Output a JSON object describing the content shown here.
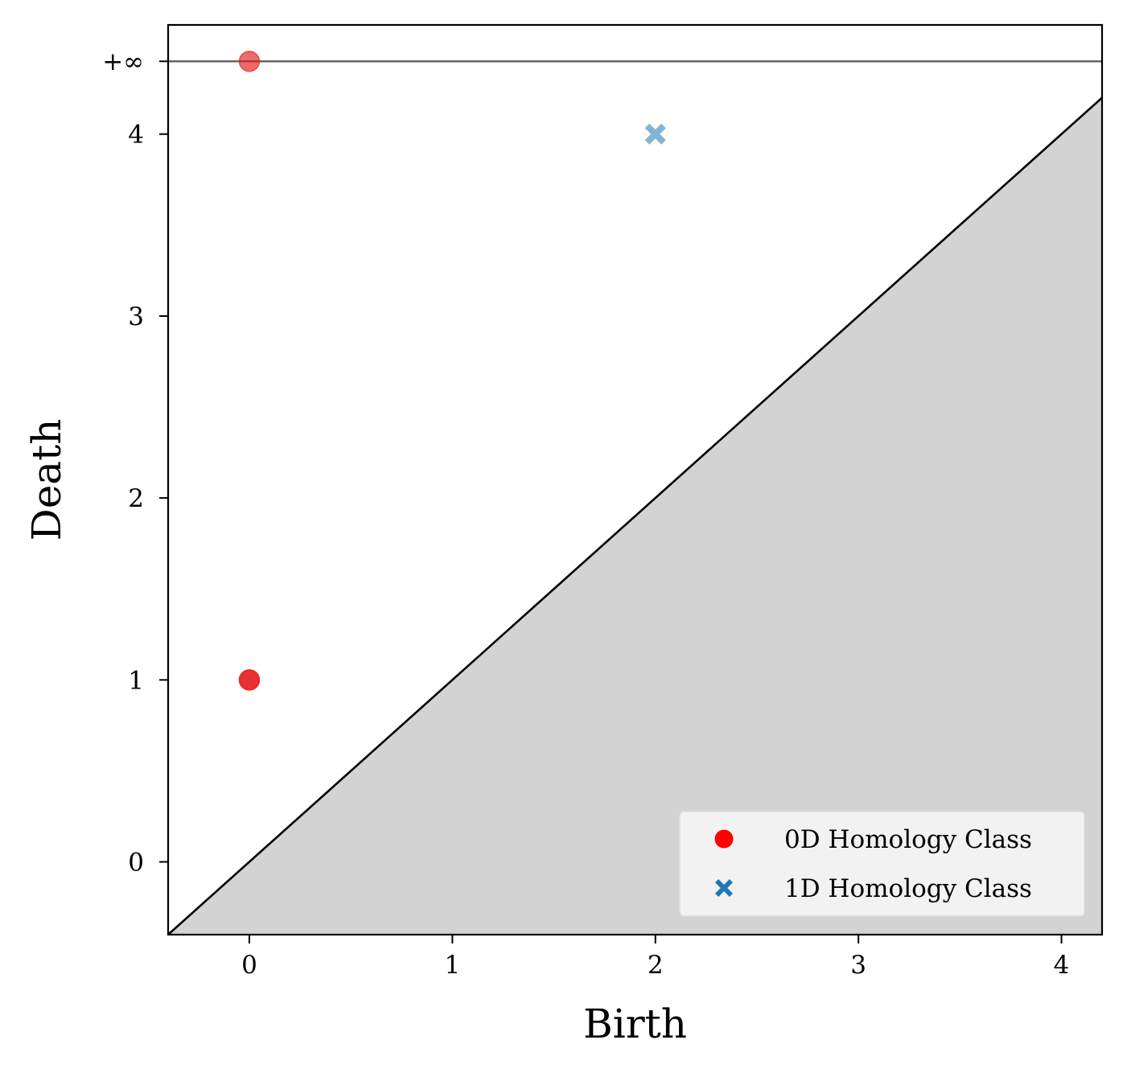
{
  "chart_data": {
    "type": "scatter",
    "title": "",
    "xlabel": "Birth",
    "ylabel": "Death",
    "xlim": [
      -0.4,
      4.2
    ],
    "ylim": [
      -0.4,
      4.6
    ],
    "infinity_value": 4.4,
    "infinity_label": "+∞",
    "x_ticks": [
      {
        "value": 0,
        "label": "0"
      },
      {
        "value": 1,
        "label": "1"
      },
      {
        "value": 2,
        "label": "2"
      },
      {
        "value": 3,
        "label": "3"
      },
      {
        "value": 4,
        "label": "4"
      }
    ],
    "y_ticks": [
      {
        "value": 0,
        "label": "0"
      },
      {
        "value": 1,
        "label": "1"
      },
      {
        "value": 2,
        "label": "2"
      },
      {
        "value": 3,
        "label": "3"
      },
      {
        "value": 4,
        "label": "4"
      }
    ],
    "diagonal": true,
    "below_diagonal_fill": "#d3d3d3",
    "infinity_line_color": "#666666",
    "grid": false,
    "legend_position": "bottom-right",
    "series": [
      {
        "name": "0D Homology Class",
        "marker": "circle",
        "color": "#e41a1c",
        "legend_color": "#ff0000",
        "points": [
          {
            "x": 0,
            "y": 1,
            "opacity": 0.9
          },
          {
            "x": 0,
            "y": "+∞",
            "opacity": 0.65
          }
        ]
      },
      {
        "name": "1D Homology Class",
        "marker": "x-filled",
        "color": "#1f77b4",
        "legend_color": "#1f77b4",
        "points": [
          {
            "x": 2,
            "y": 4,
            "opacity": 0.55
          }
        ]
      }
    ]
  }
}
